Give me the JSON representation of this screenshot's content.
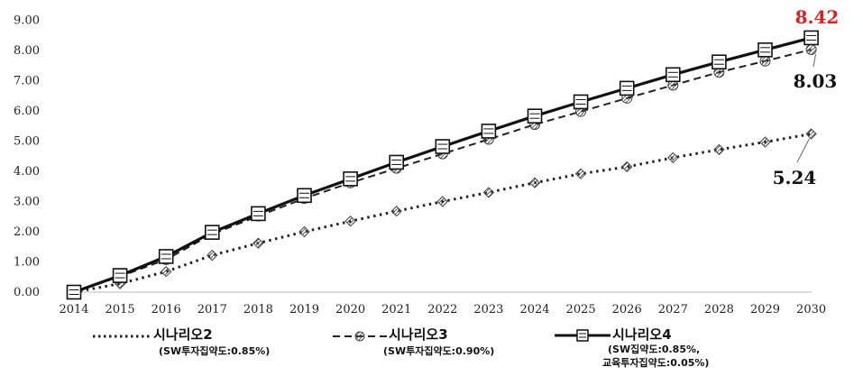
{
  "chart_data": {
    "type": "line",
    "title": "",
    "xlabel": "",
    "ylabel": "",
    "ylim": [
      0,
      9
    ],
    "yticks": [
      "0.00",
      "1.00",
      "2.00",
      "3.00",
      "4.00",
      "5.00",
      "6.00",
      "7.00",
      "8.00",
      "9.00"
    ],
    "x": [
      "2014",
      "2015",
      "2016",
      "2017",
      "2018",
      "2019",
      "2020",
      "2021",
      "2022",
      "2023",
      "2024",
      "2025",
      "2026",
      "2027",
      "2028",
      "2029",
      "2030"
    ],
    "grid": false,
    "legend_position": "bottom",
    "series": [
      {
        "name": "시나리오2",
        "subtitle": [
          "(SW투자집약도:0.85%)"
        ],
        "style": "dotted",
        "marker": "diamond",
        "values": [
          0.0,
          0.28,
          0.68,
          1.22,
          1.62,
          2.0,
          2.35,
          2.68,
          3.0,
          3.3,
          3.62,
          3.92,
          4.15,
          4.45,
          4.72,
          4.97,
          5.24
        ]
      },
      {
        "name": "시나리오3",
        "subtitle": [
          "(SW투자집약도:0.90%)"
        ],
        "style": "dashed",
        "marker": "circle",
        "values": [
          0.0,
          0.52,
          1.08,
          1.92,
          2.52,
          3.1,
          3.62,
          4.1,
          4.58,
          5.06,
          5.55,
          5.98,
          6.42,
          6.85,
          7.28,
          7.65,
          8.03
        ]
      },
      {
        "name": "시나리오4",
        "subtitle": [
          "(SW집약도:0.85%,",
          "교육투자집약도:0.05%)"
        ],
        "style": "solid",
        "marker": "square",
        "values": [
          0.0,
          0.55,
          1.18,
          1.98,
          2.6,
          3.2,
          3.75,
          4.3,
          4.82,
          5.33,
          5.83,
          6.3,
          6.75,
          7.2,
          7.62,
          8.02,
          8.42
        ]
      }
    ],
    "annotations": [
      {
        "text": "8.42",
        "series": 2,
        "index": 16,
        "color": "#e02020"
      },
      {
        "text": "8.03",
        "series": 1,
        "index": 16,
        "color": "#111111"
      },
      {
        "text": "5.24",
        "series": 0,
        "index": 16,
        "color": "#111111"
      }
    ]
  }
}
